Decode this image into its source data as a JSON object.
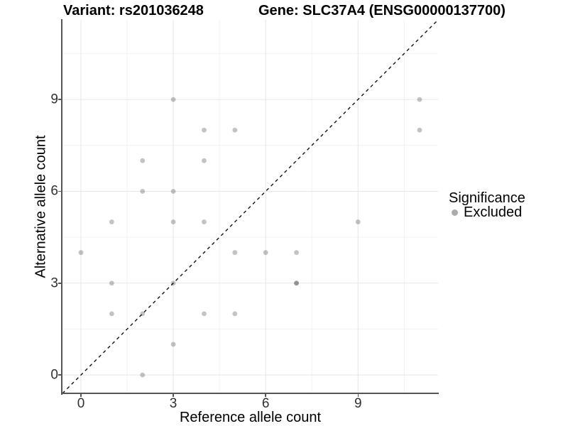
{
  "chart_data": {
    "type": "scatter",
    "title_left": "Variant: rs201036248",
    "title_right": "Gene: SLC37A4 (ENSG00000137700)",
    "xlabel": "Reference allele count",
    "ylabel": "Alternative allele count",
    "xlim": [
      -0.6,
      11.6
    ],
    "ylim": [
      -0.6,
      11.6
    ],
    "x_ticks": [
      0,
      3,
      6,
      9
    ],
    "y_ticks": [
      0,
      3,
      6,
      9
    ],
    "x_minor_gridlines": [
      1.5,
      4.5,
      7.5,
      10.5
    ],
    "y_minor_gridlines": [
      1.5,
      4.5,
      7.5,
      10.5
    ],
    "grid": "major+minor",
    "identity_line": {
      "equation": "y = x",
      "style": "dashed",
      "color": "#111111"
    },
    "legend": {
      "title": "Significance",
      "position": "right",
      "entries": [
        {
          "label": "Excluded",
          "marker": "circle",
          "color": "#ababab"
        }
      ]
    },
    "series": [
      {
        "name": "Excluded",
        "marker_color": "rgba(0,0,0,0.235)",
        "points": [
          [
            0,
            4
          ],
          [
            1,
            2
          ],
          [
            1,
            3
          ],
          [
            1,
            5
          ],
          [
            2,
            0
          ],
          [
            2,
            2
          ],
          [
            2,
            6
          ],
          [
            2,
            7
          ],
          [
            3,
            1
          ],
          [
            3,
            3
          ],
          [
            3,
            5
          ],
          [
            3,
            6
          ],
          [
            3,
            9
          ],
          [
            4,
            2
          ],
          [
            4,
            5
          ],
          [
            4,
            7
          ],
          [
            4,
            8
          ],
          [
            5,
            2
          ],
          [
            5,
            4
          ],
          [
            5,
            8
          ],
          [
            6,
            4
          ],
          [
            7,
            3
          ],
          [
            7,
            3
          ],
          [
            7,
            4
          ],
          [
            9,
            5
          ],
          [
            11,
            8
          ],
          [
            11,
            9
          ]
        ]
      }
    ]
  },
  "colors": {
    "background": "#ffffff",
    "axis_line": "#555555",
    "tick_label": "#303030",
    "grid_major": "#e7e7e7",
    "grid_minor": "#f2f2f2",
    "point": "rgba(0,0,0,0.235)",
    "legend_marker": "#ababab",
    "text": "#000000"
  }
}
